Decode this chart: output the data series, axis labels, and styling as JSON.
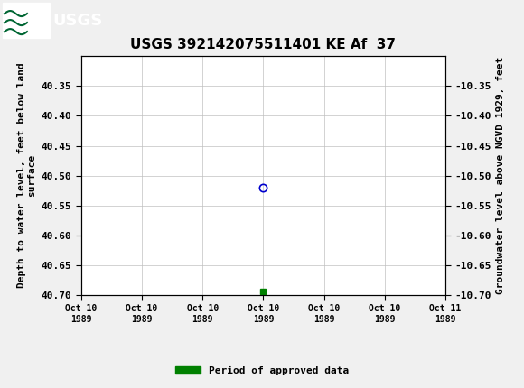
{
  "title": "USGS 392142075511401 KE Af  37",
  "ylabel_left": "Depth to water level, feet below land\nsurface",
  "ylabel_right": "Groundwater level above NGVD 1929, feet",
  "ylim_left": [
    40.7,
    40.3
  ],
  "ylim_right": [
    -10.7,
    -10.3
  ],
  "yticks_left": [
    40.35,
    40.4,
    40.45,
    40.5,
    40.55,
    40.6,
    40.65,
    40.7
  ],
  "yticks_right": [
    -10.35,
    -10.4,
    -10.45,
    -10.5,
    -10.55,
    -10.6,
    -10.65,
    -10.7
  ],
  "xlim": [
    0,
    6
  ],
  "xtick_labels": [
    "Oct 10\n1989",
    "Oct 10\n1989",
    "Oct 10\n1989",
    "Oct 10\n1989",
    "Oct 10\n1989",
    "Oct 10\n1989",
    "Oct 11\n1989"
  ],
  "xtick_positions": [
    0,
    1,
    2,
    3,
    4,
    5,
    6
  ],
  "data_point_x": 3,
  "data_point_y": 40.52,
  "data_point_color": "#0000cd",
  "green_square_x": 3,
  "green_square_y": 40.695,
  "green_square_color": "#008000",
  "header_bg_color": "#006633",
  "header_text_color": "#ffffff",
  "background_color": "#f0f0f0",
  "plot_bg_color": "#ffffff",
  "grid_color": "#c0c0c0",
  "legend_label": "Period of approved data",
  "legend_color": "#008000",
  "title_fontsize": 11,
  "axis_label_fontsize": 8,
  "tick_fontsize": 8
}
